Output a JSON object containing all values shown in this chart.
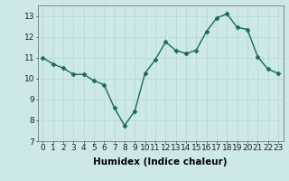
{
  "x": [
    0,
    1,
    2,
    3,
    4,
    5,
    6,
    7,
    8,
    9,
    10,
    11,
    12,
    13,
    14,
    15,
    16,
    17,
    18,
    19,
    20,
    21,
    22,
    23
  ],
  "y": [
    11.0,
    10.7,
    10.5,
    10.2,
    10.2,
    9.9,
    9.7,
    8.6,
    7.75,
    8.45,
    10.25,
    10.9,
    11.75,
    11.35,
    11.2,
    11.35,
    12.25,
    12.9,
    13.1,
    12.45,
    12.35,
    11.05,
    10.45,
    10.25
  ],
  "line_color": "#1a6b5a",
  "marker": "D",
  "marker_size": 2.5,
  "bg_color": "#cce8e8",
  "grid_color": "#b8d4d4",
  "xlabel": "Humidex (Indice chaleur)",
  "ylim": [
    7,
    13.5
  ],
  "xlim": [
    -0.5,
    23.5
  ],
  "yticks": [
    7,
    8,
    9,
    10,
    11,
    12,
    13
  ],
  "xticks": [
    0,
    1,
    2,
    3,
    4,
    5,
    6,
    7,
    8,
    9,
    10,
    11,
    12,
    13,
    14,
    15,
    16,
    17,
    18,
    19,
    20,
    21,
    22,
    23
  ],
  "xlabel_fontsize": 7.5,
  "tick_fontsize": 6.5,
  "line_width": 1.0
}
